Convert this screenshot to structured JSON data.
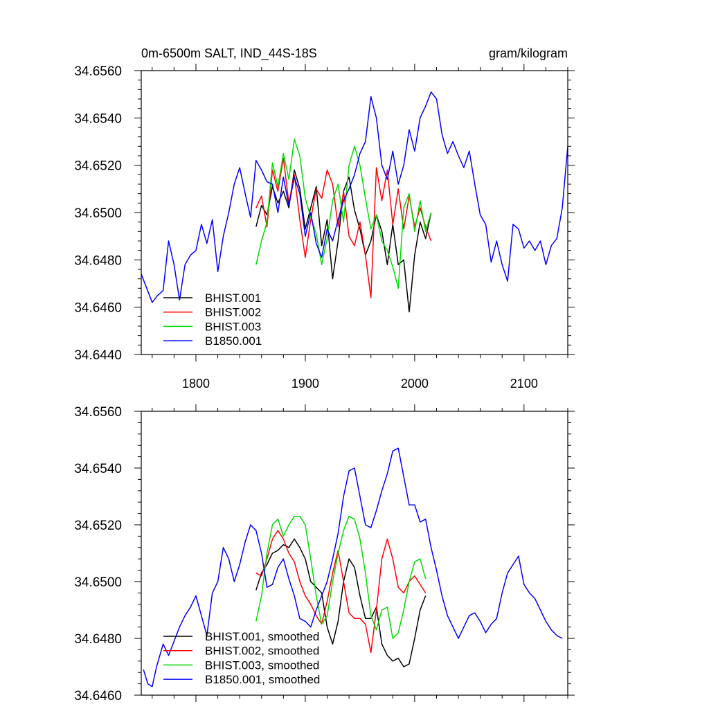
{
  "chart_data": [
    {
      "type": "line",
      "title_left": "0m-6500m SALT, IND_44S-18S",
      "title_right": "gram/kilogram",
      "xlim": [
        1750,
        2140
      ],
      "ylim": [
        34.644,
        34.656
      ],
      "x_ticks": [
        1800,
        1900,
        2000,
        2100
      ],
      "x_tick_labels": [
        "1800",
        "1900",
        "2000",
        "2100"
      ],
      "y_ticks": [
        34.644,
        34.646,
        34.648,
        34.65,
        34.652,
        34.654,
        34.656
      ],
      "y_tick_labels": [
        "34.6440",
        "34.6460",
        "34.6480",
        "34.6500",
        "34.6520",
        "34.6540",
        "34.6560"
      ],
      "legend_position": "bottom-left",
      "series": [
        {
          "name": "BHIST.001",
          "color": "#000000",
          "x": [
            1855,
            1860,
            1865,
            1870,
            1875,
            1880,
            1885,
            1890,
            1895,
            1900,
            1905,
            1910,
            1915,
            1920,
            1925,
            1930,
            1935,
            1940,
            1945,
            1950,
            1955,
            1960,
            1965,
            1970,
            1975,
            1980,
            1985,
            1990,
            1995,
            2000,
            2005,
            2010,
            2015
          ],
          "y": [
            34.6494,
            34.6503,
            34.6499,
            34.6511,
            34.6504,
            34.6509,
            34.6502,
            34.6518,
            34.651,
            34.6493,
            34.6502,
            34.6511,
            34.6486,
            34.6497,
            34.6472,
            34.6488,
            34.6509,
            34.6515,
            34.6501,
            34.6493,
            34.6482,
            34.6488,
            34.6499,
            34.6492,
            34.6478,
            34.6495,
            34.6478,
            34.648,
            34.6458,
            34.6482,
            34.6496,
            34.6489,
            34.65
          ]
        },
        {
          "name": "BHIST.002",
          "color": "#ff0000",
          "x": [
            1855,
            1860,
            1865,
            1870,
            1875,
            1880,
            1885,
            1890,
            1895,
            1900,
            1905,
            1910,
            1915,
            1920,
            1925,
            1930,
            1935,
            1940,
            1945,
            1950,
            1955,
            1960,
            1965,
            1970,
            1975,
            1980,
            1985,
            1990,
            1995,
            2000,
            2005,
            2010,
            2015
          ],
          "y": [
            34.6502,
            34.6507,
            34.6494,
            34.6518,
            34.6509,
            34.6523,
            34.6504,
            34.6516,
            34.6497,
            34.6481,
            34.6497,
            34.651,
            34.6506,
            34.6518,
            34.6512,
            34.6494,
            34.6509,
            34.649,
            34.6486,
            34.6496,
            34.6482,
            34.6464,
            34.6519,
            34.6505,
            34.6518,
            34.6495,
            34.651,
            34.6493,
            34.6507,
            34.6494,
            34.6502,
            34.6494,
            34.6488
          ]
        },
        {
          "name": "BHIST.003",
          "color": "#00dd00",
          "x": [
            1855,
            1860,
            1865,
            1870,
            1875,
            1880,
            1885,
            1890,
            1895,
            1900,
            1905,
            1910,
            1915,
            1920,
            1925,
            1930,
            1935,
            1940,
            1945,
            1950,
            1955,
            1960,
            1965,
            1970,
            1975,
            1980,
            1985,
            1990,
            1995,
            2000,
            2005,
            2010,
            2015
          ],
          "y": [
            34.6478,
            34.6488,
            34.6496,
            34.6521,
            34.6511,
            34.6525,
            34.6514,
            34.6531,
            34.6524,
            34.6506,
            34.6498,
            34.6491,
            34.6478,
            34.6489,
            34.6505,
            34.6512,
            34.6496,
            34.652,
            34.6528,
            34.652,
            34.6506,
            34.6493,
            34.6499,
            34.6488,
            34.6484,
            34.6477,
            34.6468,
            34.6502,
            34.6508,
            34.6492,
            34.6505,
            34.6492,
            34.65
          ]
        },
        {
          "name": "B1850.001",
          "color": "#0000ff",
          "x": [
            1750,
            1755,
            1760,
            1765,
            1770,
            1775,
            1780,
            1785,
            1790,
            1795,
            1800,
            1805,
            1810,
            1815,
            1820,
            1825,
            1830,
            1835,
            1840,
            1845,
            1850,
            1855,
            1860,
            1865,
            1870,
            1875,
            1880,
            1885,
            1890,
            1895,
            1900,
            1905,
            1910,
            1915,
            1920,
            1925,
            1930,
            1935,
            1940,
            1945,
            1950,
            1955,
            1960,
            1965,
            1970,
            1975,
            1980,
            1985,
            1990,
            1995,
            2000,
            2005,
            2010,
            2015,
            2020,
            2025,
            2030,
            2035,
            2040,
            2045,
            2050,
            2055,
            2060,
            2065,
            2070,
            2075,
            2080,
            2085,
            2090,
            2095,
            2100,
            2105,
            2110,
            2115,
            2120,
            2125,
            2130,
            2135,
            2140
          ],
          "y": [
            34.6474,
            34.6468,
            34.6462,
            34.6465,
            34.6467,
            34.6488,
            34.6478,
            34.6463,
            34.6478,
            34.6482,
            34.6484,
            34.6495,
            34.6487,
            34.6497,
            34.6475,
            34.649,
            34.65,
            34.6512,
            34.6519,
            34.6508,
            34.6498,
            34.6522,
            34.6518,
            34.6513,
            34.6512,
            34.65,
            34.6515,
            34.6503,
            34.6515,
            34.6508,
            34.649,
            34.65,
            34.6487,
            34.6481,
            34.6493,
            34.6488,
            34.6497,
            34.6505,
            34.651,
            34.6516,
            34.6525,
            34.653,
            34.6549,
            34.654,
            34.652,
            34.6514,
            34.6526,
            34.6512,
            34.652,
            34.6535,
            34.6526,
            34.654,
            34.6545,
            34.6551,
            34.6548,
            34.6533,
            34.6525,
            34.653,
            34.6524,
            34.6519,
            34.6526,
            34.6512,
            34.6499,
            34.6495,
            34.6479,
            34.6488,
            34.6478,
            34.6471,
            34.6495,
            34.6493,
            34.6485,
            34.6488,
            34.6484,
            34.6488,
            34.6478,
            34.6486,
            34.6489,
            34.6502,
            34.6528
          ]
        }
      ]
    },
    {
      "type": "line",
      "xlim": [
        1750,
        2140
      ],
      "ylim": [
        34.646,
        34.656
      ],
      "x_ticks": [
        1800,
        1900,
        2000,
        2100
      ],
      "y_ticks": [
        34.646,
        34.648,
        34.65,
        34.652,
        34.654,
        34.656
      ],
      "y_tick_labels": [
        "34.6460",
        "34.6480",
        "34.6500",
        "34.6520",
        "34.6540",
        "34.6560"
      ],
      "legend_position": "bottom-left",
      "series": [
        {
          "name": "BHIST.001, smoothed",
          "color": "#000000",
          "x": [
            1855,
            1860,
            1865,
            1870,
            1875,
            1880,
            1885,
            1890,
            1895,
            1900,
            1905,
            1910,
            1915,
            1920,
            1925,
            1930,
            1935,
            1940,
            1945,
            1950,
            1955,
            1960,
            1965,
            1970,
            1975,
            1980,
            1985,
            1990,
            1995,
            2000,
            2005,
            2010
          ],
          "y": [
            34.6497,
            34.6503,
            34.6506,
            34.651,
            34.6511,
            34.6513,
            34.6512,
            34.6515,
            34.6512,
            34.6508,
            34.65,
            34.6498,
            34.6496,
            34.6484,
            34.6478,
            34.6486,
            34.65,
            34.6508,
            34.6505,
            34.6495,
            34.6487,
            34.6487,
            34.6491,
            34.6478,
            34.6474,
            34.6472,
            34.6473,
            34.647,
            34.6471,
            34.648,
            34.649,
            34.6495
          ]
        },
        {
          "name": "BHIST.002, smoothed",
          "color": "#ff0000",
          "x": [
            1855,
            1860,
            1865,
            1870,
            1875,
            1880,
            1885,
            1890,
            1895,
            1900,
            1905,
            1910,
            1915,
            1920,
            1925,
            1930,
            1935,
            1940,
            1945,
            1950,
            1955,
            1960,
            1965,
            1970,
            1975,
            1980,
            1985,
            1990,
            1995,
            2000,
            2005,
            2010
          ],
          "y": [
            34.6503,
            34.6502,
            34.6508,
            34.6515,
            34.6518,
            34.6515,
            34.651,
            34.6507,
            34.65,
            34.6495,
            34.6492,
            34.6488,
            34.6485,
            34.6493,
            34.6503,
            34.6511,
            34.65,
            34.6489,
            34.6487,
            34.6487,
            34.6485,
            34.6475,
            34.649,
            34.6508,
            34.6515,
            34.6508,
            34.6498,
            34.6496,
            34.65,
            34.6502,
            34.6499,
            34.6496
          ]
        },
        {
          "name": "BHIST.003, smoothed",
          "color": "#00dd00",
          "x": [
            1855,
            1860,
            1865,
            1870,
            1875,
            1880,
            1885,
            1890,
            1895,
            1900,
            1905,
            1910,
            1915,
            1920,
            1925,
            1930,
            1935,
            1940,
            1945,
            1950,
            1955,
            1960,
            1965,
            1970,
            1975,
            1980,
            1985,
            1990,
            1995,
            2000,
            2005,
            2010
          ],
          "y": [
            34.6486,
            34.6495,
            34.651,
            34.652,
            34.6522,
            34.6516,
            34.652,
            34.6523,
            34.6523,
            34.652,
            34.6508,
            34.6495,
            34.6485,
            34.6488,
            34.65,
            34.651,
            34.6518,
            34.6523,
            34.6522,
            34.6515,
            34.6503,
            34.6488,
            34.6483,
            34.649,
            34.6491,
            34.648,
            34.6482,
            34.649,
            34.65,
            34.6507,
            34.6508,
            34.6501
          ]
        },
        {
          "name": "B1850.001, smoothed",
          "color": "#0000ff",
          "x": [
            1752,
            1756,
            1760,
            1764,
            1770,
            1775,
            1780,
            1785,
            1790,
            1795,
            1800,
            1805,
            1810,
            1815,
            1820,
            1825,
            1830,
            1835,
            1840,
            1845,
            1850,
            1855,
            1860,
            1865,
            1870,
            1875,
            1880,
            1885,
            1890,
            1895,
            1900,
            1905,
            1910,
            1915,
            1920,
            1925,
            1930,
            1935,
            1940,
            1945,
            1950,
            1955,
            1960,
            1965,
            1970,
            1975,
            1980,
            1985,
            1990,
            1995,
            2000,
            2005,
            2010,
            2015,
            2020,
            2025,
            2030,
            2035,
            2040,
            2045,
            2050,
            2055,
            2060,
            2065,
            2070,
            2075,
            2080,
            2085,
            2090,
            2095,
            2100,
            2105,
            2110,
            2115,
            2120,
            2125,
            2130,
            2135
          ],
          "y": [
            34.6469,
            34.6464,
            34.6463,
            34.647,
            34.6478,
            34.6474,
            34.6479,
            34.6484,
            34.6488,
            34.6491,
            34.6495,
            34.6488,
            34.6481,
            34.6496,
            34.65,
            34.6512,
            34.6508,
            34.65,
            34.6506,
            34.6514,
            34.652,
            34.6518,
            34.651,
            34.6498,
            34.6499,
            34.6505,
            34.6508,
            34.6501,
            34.6495,
            34.6487,
            34.6486,
            34.6484,
            34.649,
            34.6495,
            34.65,
            34.6508,
            34.6517,
            34.653,
            34.6539,
            34.654,
            34.653,
            34.652,
            34.6519,
            34.6525,
            34.6532,
            34.6538,
            34.6546,
            34.6547,
            34.6537,
            34.6527,
            34.6527,
            34.6521,
            34.6522,
            34.6512,
            34.6504,
            34.6495,
            34.6488,
            34.6484,
            34.648,
            34.6484,
            34.6488,
            34.6489,
            34.6486,
            34.6482,
            34.6485,
            34.6487,
            34.6496,
            34.6503,
            34.6506,
            34.6509,
            34.6499,
            34.6496,
            34.6494,
            34.649,
            34.6486,
            34.6483,
            34.6481,
            34.648
          ]
        }
      ]
    }
  ]
}
